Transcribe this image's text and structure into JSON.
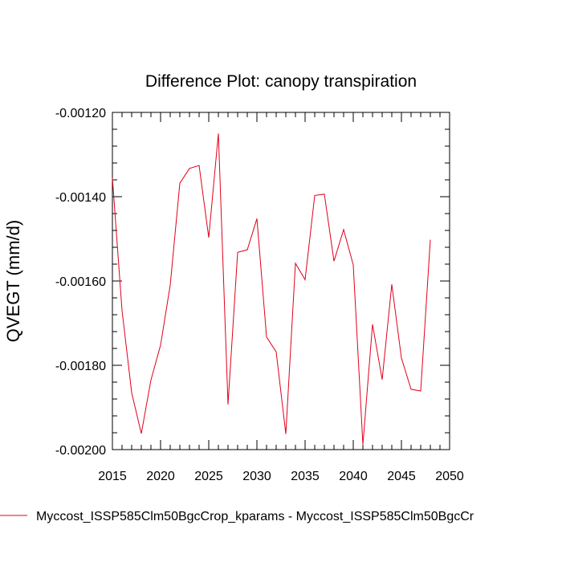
{
  "chart_data": {
    "type": "line",
    "title": "Difference Plot: canopy transpiration",
    "xlabel": "",
    "ylabel": "QVEGT  (mm/d)",
    "xlim": [
      2015,
      2050
    ],
    "ylim": [
      -0.002,
      -0.0012
    ],
    "xticks": [
      2015,
      2020,
      2025,
      2030,
      2035,
      2040,
      2045,
      2050
    ],
    "xtick_labels": [
      "2015",
      "2020",
      "2025",
      "2030",
      "2035",
      "2040",
      "2045",
      "2050"
    ],
    "yticks": [
      -0.0012,
      -0.0014,
      -0.0016,
      -0.0018,
      -0.002
    ],
    "ytick_labels": [
      "-0.00120",
      "-0.00140",
      "-0.00160",
      "-0.00180",
      "-0.00200"
    ],
    "grid": false,
    "legend_position": "bottom",
    "series": [
      {
        "name": "Myccost_ISSP585Clm50BgcCrop_kparams - Myccost_ISSP585Clm50BgcCr",
        "color": "#e0001a",
        "x": [
          2015,
          2016,
          2017,
          2018,
          2019,
          2020,
          2021,
          2022,
          2023,
          2024,
          2025,
          2026,
          2027,
          2028,
          2029,
          2030,
          2031,
          2032,
          2033,
          2034,
          2035,
          2036,
          2037,
          2038,
          2039,
          2040,
          2041,
          2042,
          2043,
          2044,
          2045,
          2046,
          2047,
          2048
        ],
        "values": [
          -0.001355,
          -0.00167,
          -0.001865,
          -0.001962,
          -0.001835,
          -0.001752,
          -0.00161,
          -0.001368,
          -0.001333,
          -0.001326,
          -0.001497,
          -0.00125,
          -0.001893,
          -0.001532,
          -0.001526,
          -0.001452,
          -0.001733,
          -0.001768,
          -0.001963,
          -0.001558,
          -0.001597,
          -0.001397,
          -0.001394,
          -0.001553,
          -0.001478,
          -0.001562,
          -0.001988,
          -0.001703,
          -0.001834,
          -0.001608,
          -0.001783,
          -0.001857,
          -0.001861,
          -0.001502
        ]
      }
    ]
  }
}
